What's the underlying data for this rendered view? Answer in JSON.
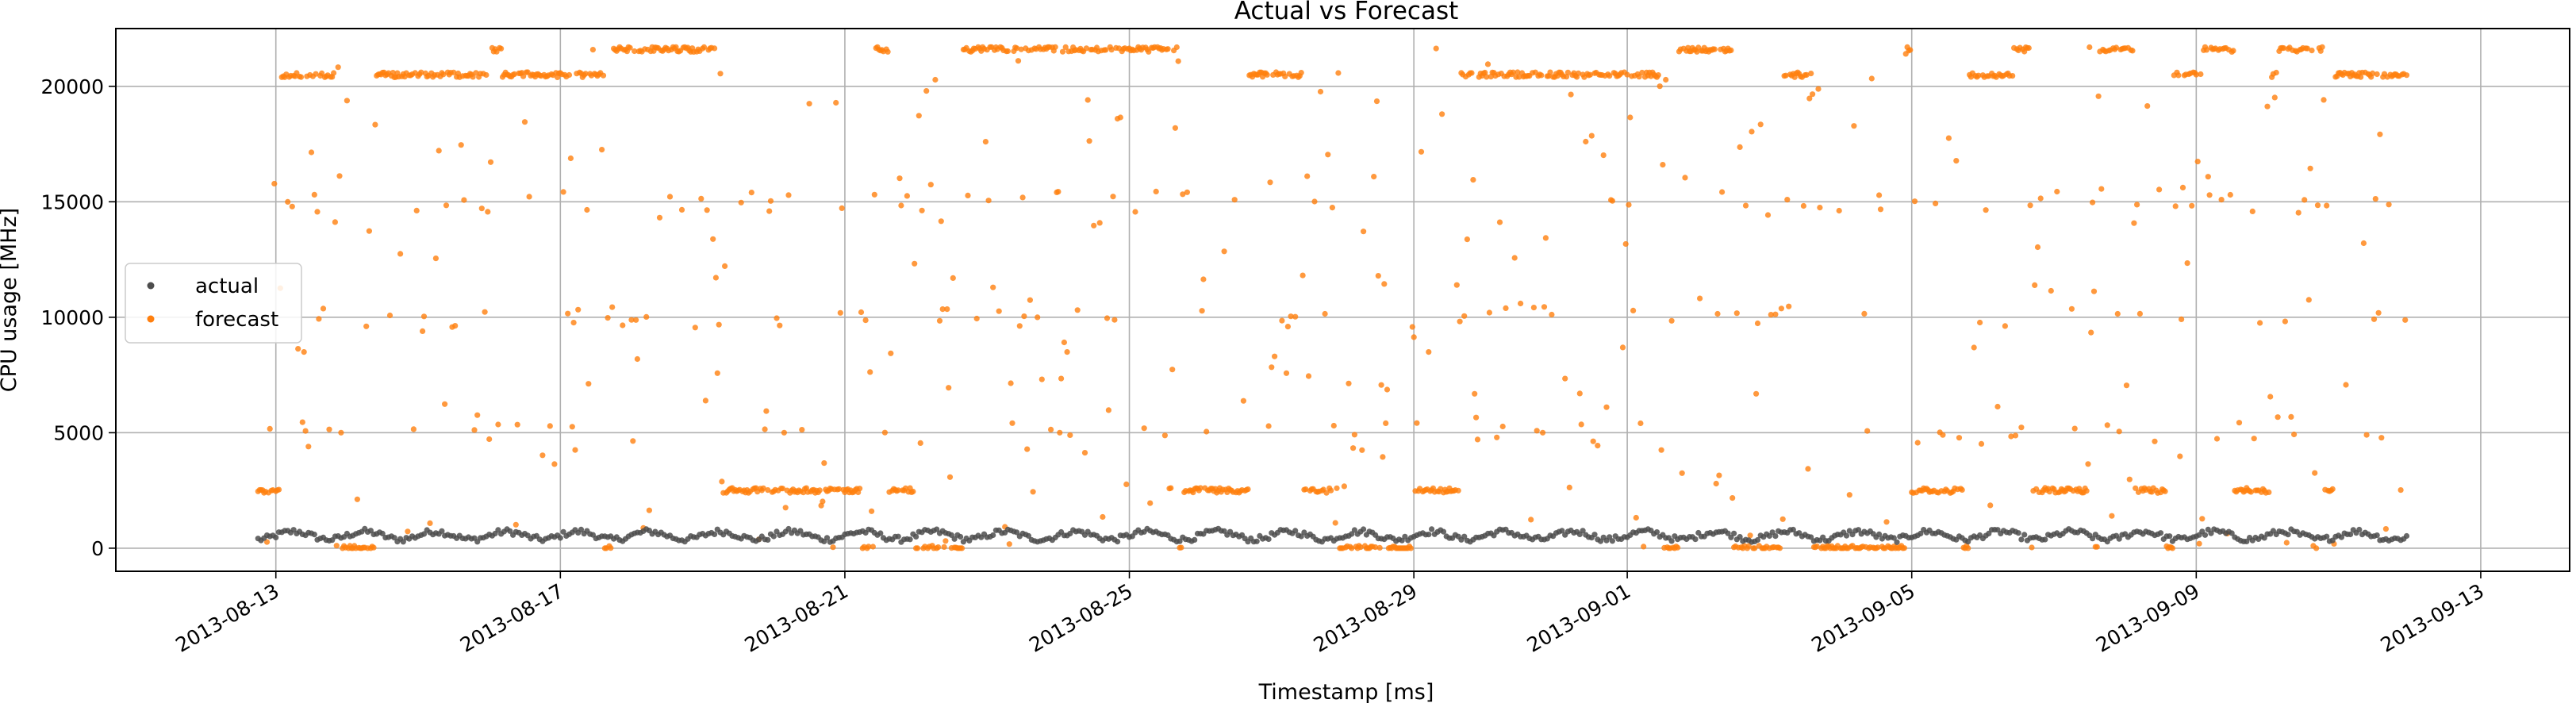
{
  "chart_data": {
    "type": "scatter",
    "title": "Actual vs Forecast",
    "xlabel": "Timestamp [ms]",
    "ylabel": "CPU usage [MHz]",
    "xlim": [
      "2013-08-10T18:00",
      "2013-09-14T06:00"
    ],
    "ylim": [
      -1000,
      22500
    ],
    "x_ticks": [
      "2013-08-13",
      "2013-08-17",
      "2013-08-21",
      "2013-08-25",
      "2013-08-29",
      "2013-09-01",
      "2013-09-05",
      "2013-09-09",
      "2013-09-13"
    ],
    "y_ticks": [
      0,
      5000,
      10000,
      15000,
      20000
    ],
    "y_tick_labels": [
      "0",
      "5000",
      "10000",
      "15000",
      "20000"
    ],
    "grid": true,
    "legend_position": "center-left",
    "data_start": "2013-08-12T18:00",
    "data_end": "2013-09-11T23:00",
    "series": [
      {
        "name": "actual",
        "color": "#4d4d4d",
        "sampling_minutes": 60,
        "y_range": [
          200,
          1000
        ],
        "typical_value": 550
      },
      {
        "name": "forecast",
        "color": "#ff7f0e",
        "sampling_minutes": 30,
        "y_range": [
          0,
          21700
        ],
        "dominant_levels": [
          0,
          2500,
          20500,
          21600
        ],
        "intermittent_levels": [
          5000,
          10000,
          15000
        ]
      }
    ]
  }
}
